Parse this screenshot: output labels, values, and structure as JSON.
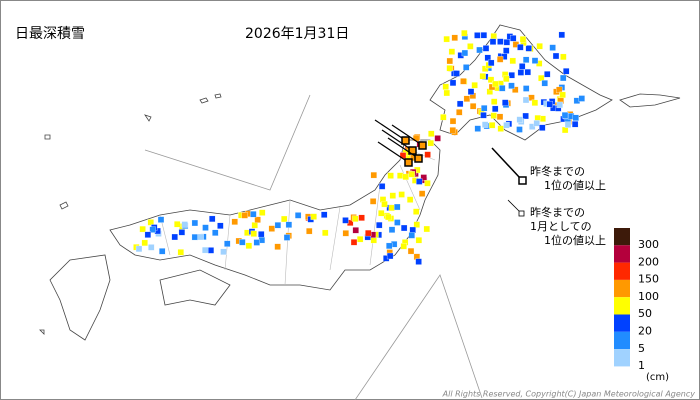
{
  "header": {
    "title": "日最深積雪",
    "date": "2026年1月31日"
  },
  "annotations": [
    {
      "lines": [
        "昨冬までの",
        "1位の値以上"
      ]
    },
    {
      "lines": [
        "昨冬までの",
        "1月としての",
        "1位の値以上"
      ]
    }
  ],
  "legend": {
    "items": [
      {
        "label": "300",
        "color": "#3d1a0a"
      },
      {
        "label": "200",
        "color": "#b4003c"
      },
      {
        "label": "150",
        "color": "#ff2800"
      },
      {
        "label": "100",
        "color": "#ff9900"
      },
      {
        "label": "50",
        "color": "#ffff00"
      },
      {
        "label": "20",
        "color": "#0041ff"
      },
      {
        "label": "5",
        "color": "#218cff"
      },
      {
        "label": "1",
        "color": "#a0d2ff"
      }
    ],
    "unit": "(cm)"
  },
  "copyright": "All Rights Reserved, Copyright(C) Japan Meteorological Agency"
}
